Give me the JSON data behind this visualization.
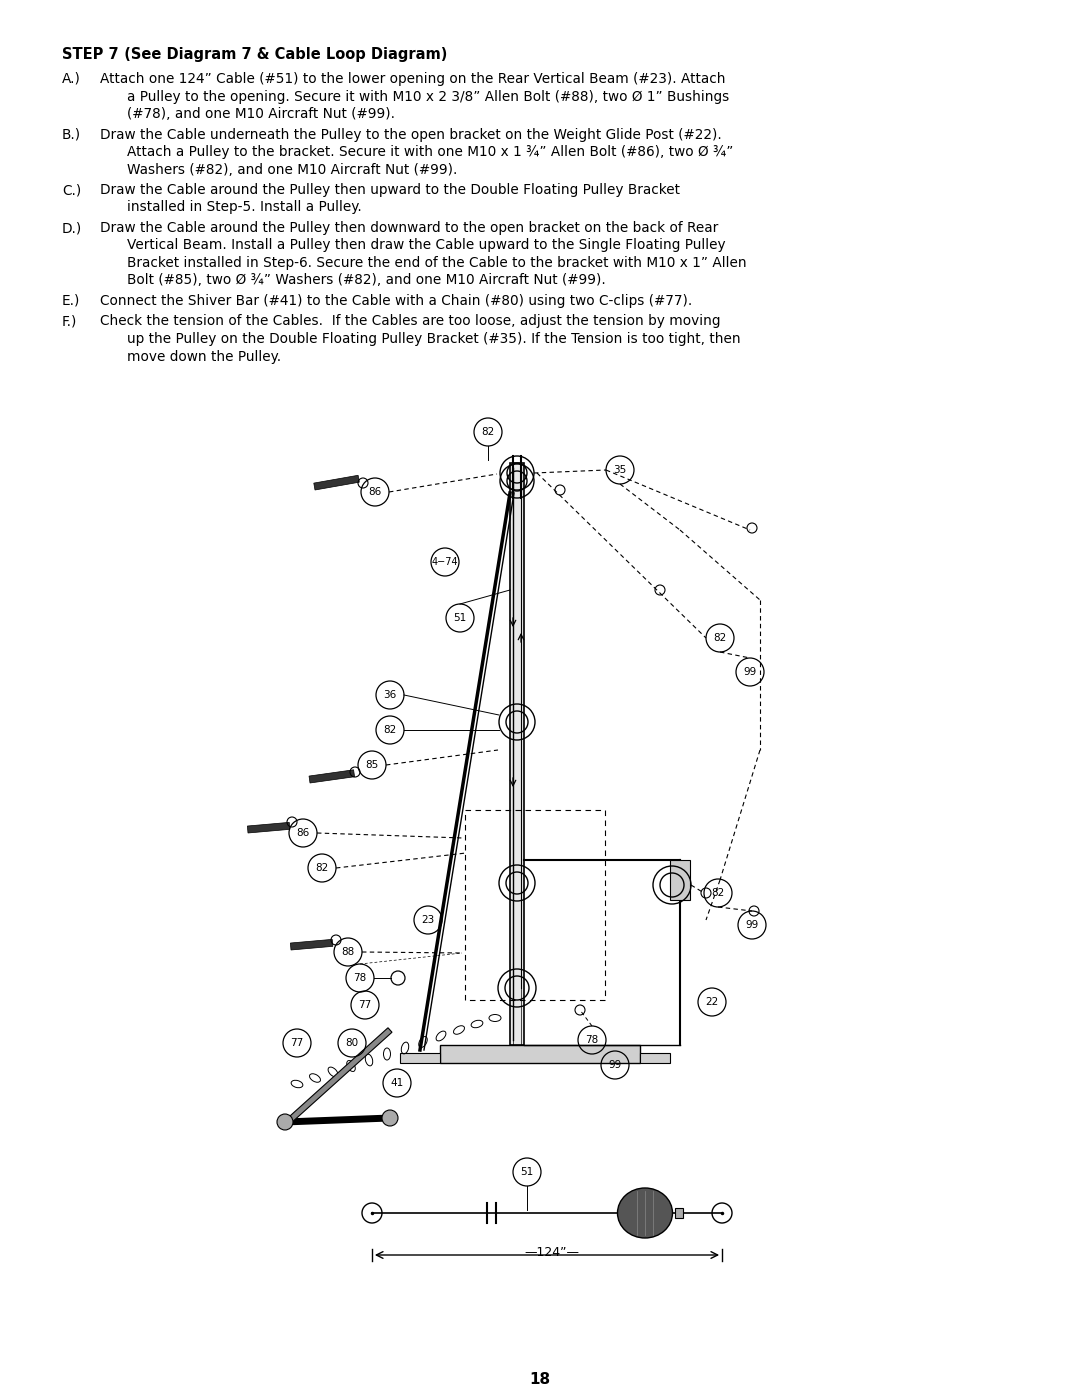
{
  "title_bold": "STEP 7",
  "title_normal": "  (See Diagram 7 & Cable Loop Diagram)",
  "instructions": [
    {
      "label": "A.)",
      "lines": [
        "Attach one 124” Cable (#51) to the lower opening on the Rear Vertical Beam (#23). Attach",
        "a Pulley to the opening. Secure it with M10 x 2 3/8” Allen Bolt (#88), two Ø 1” Bushings",
        "(#78), and one M10 Aircraft Nut (#99)."
      ]
    },
    {
      "label": "B.)",
      "lines": [
        "Draw the Cable underneath the Pulley to the open bracket on the Weight Glide Post (#22).",
        "Attach a Pulley to the bracket. Secure it with one M10 x 1 ¾” Allen Bolt (#86), two Ø ¾”",
        "Washers (#82), and one M10 Aircraft Nut (#99)."
      ]
    },
    {
      "label": "C.)",
      "lines": [
        "Draw the Cable around the Pulley then upward to the Double Floating Pulley Bracket",
        "installed in Step-5. Install a Pulley."
      ]
    },
    {
      "label": "D.)",
      "lines": [
        "Draw the Cable around the Pulley then downward to the open bracket on the back of Rear",
        "Vertical Beam. Install a Pulley then draw the Cable upward to the Single Floating Pulley",
        "Bracket installed in Step-6. Secure the end of the Cable to the bracket with M10 x 1” Allen",
        "Bolt (#85), two Ø ¾” Washers (#82), and one M10 Aircraft Nut (#99)."
      ]
    },
    {
      "label": "E.)",
      "lines": [
        "Connect the Shiver Bar (#41) to the Cable with a Chain (#80) using two C-clips (#77)."
      ]
    },
    {
      "label": "F.)",
      "lines": [
        "Check the tension of the Cables.  If the Cables are too loose, adjust the tension by moving",
        "up the Pulley on the Double Floating Pulley Bracket (#35). If the Tension is too tight, then",
        "move down the Pulley."
      ]
    }
  ],
  "page_number": "18",
  "bg_color": "#ffffff",
  "text_color": "#000000"
}
